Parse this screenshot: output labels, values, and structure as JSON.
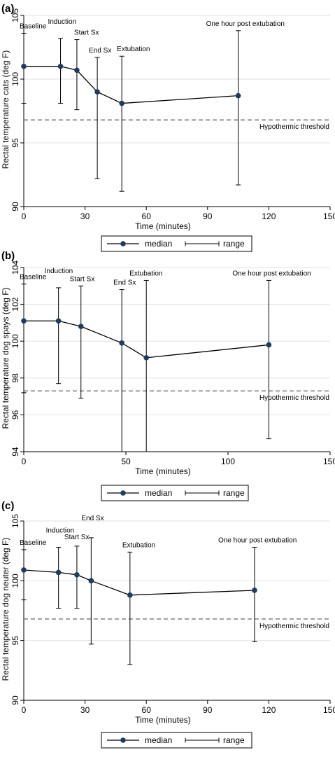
{
  "chart_data": [
    {
      "panel_label": "(a)",
      "type": "line",
      "xlabel": "Time (minutes)",
      "ylabel": "Rectal temperature cats (deg F)",
      "xlim": [
        0,
        150
      ],
      "ylim": [
        90,
        105
      ],
      "xticks": [
        0,
        30,
        60,
        90,
        120,
        150
      ],
      "yticks": [
        90,
        95,
        100,
        105
      ],
      "threshold": {
        "value": 96.8,
        "label": "Hypothermic threshold"
      },
      "points": [
        {
          "x": 0,
          "median": 101.0,
          "low": 98.1,
          "high": 103.6,
          "label": "Baseline"
        },
        {
          "x": 18,
          "median": 101.0,
          "low": 98.1,
          "high": 103.2,
          "label": "Induction"
        },
        {
          "x": 26,
          "median": 100.7,
          "low": 97.6,
          "high": 103.1,
          "label": "Start Sx"
        },
        {
          "x": 36,
          "median": 99.0,
          "low": 92.2,
          "high": 101.7,
          "label": "End Sx"
        },
        {
          "x": 48,
          "median": 98.1,
          "low": 91.2,
          "high": 101.8,
          "label": "Extubation"
        },
        {
          "x": 105,
          "median": 98.7,
          "low": 91.7,
          "high": 103.8,
          "label": "One hour post extubation"
        }
      ],
      "legend": {
        "median": "median",
        "range": "range"
      }
    },
    {
      "panel_label": "(b)",
      "type": "line",
      "xlabel": "Time (minutes)",
      "ylabel": "Rectal temperature dog spays (deg F)",
      "xlim": [
        0,
        150
      ],
      "ylim": [
        94,
        104
      ],
      "xticks": [
        0,
        50,
        100,
        150
      ],
      "yticks": [
        94,
        96,
        98,
        100,
        102,
        104
      ],
      "threshold": {
        "value": 97.3,
        "label": "Hypothermic threshold"
      },
      "points": [
        {
          "x": 0,
          "median": 101.1,
          "low": 97.2,
          "high": 103.1,
          "label": "Baseline"
        },
        {
          "x": 17,
          "median": 101.1,
          "low": 97.7,
          "high": 102.9,
          "label": "Induction"
        },
        {
          "x": 28,
          "median": 100.8,
          "low": 96.9,
          "high": 103.0,
          "label": "Start Sx"
        },
        {
          "x": 48,
          "median": 99.9,
          "low": 94.0,
          "high": 102.8,
          "label": "End Sx"
        },
        {
          "x": 60,
          "median": 99.1,
          "low": 94.0,
          "high": 103.3,
          "label": "Extubation"
        },
        {
          "x": 120,
          "median": 99.8,
          "low": 94.7,
          "high": 103.3,
          "label": "One hour post extubation"
        }
      ],
      "legend": {
        "median": "median",
        "range": "range"
      }
    },
    {
      "panel_label": "(c)",
      "type": "line",
      "xlabel": "Time (minutes)",
      "ylabel": "Rectal temperature dog neuter (deg F)",
      "xlim": [
        0,
        150
      ],
      "ylim": [
        90,
        105
      ],
      "xticks": [
        0,
        30,
        60,
        90,
        120,
        150
      ],
      "yticks": [
        90,
        95,
        100,
        105
      ],
      "threshold": {
        "value": 96.8,
        "label": "Hypothermic threshold"
      },
      "points": [
        {
          "x": 0,
          "median": 100.9,
          "low": 98.4,
          "high": 102.6,
          "label": "Baseline"
        },
        {
          "x": 17,
          "median": 100.7,
          "low": 97.7,
          "high": 102.8,
          "label": "Induction"
        },
        {
          "x": 26,
          "median": 100.5,
          "low": 97.7,
          "high": 102.9,
          "label": "Start Sx"
        },
        {
          "x": 33,
          "median": 100.0,
          "low": 94.7,
          "high": 103.6,
          "label": "End Sx"
        },
        {
          "x": 52,
          "median": 98.8,
          "low": 93.0,
          "high": 102.4,
          "label": "Extubation"
        },
        {
          "x": 113,
          "median": 99.2,
          "low": 94.9,
          "high": 102.8,
          "label": "One hour post extubation"
        }
      ],
      "legend": {
        "median": "median",
        "range": "range"
      }
    }
  ],
  "colors": {
    "marker": "#1f3c5c",
    "line": "#000000",
    "grid": "#e2e2e2",
    "threshold": "#555555"
  }
}
